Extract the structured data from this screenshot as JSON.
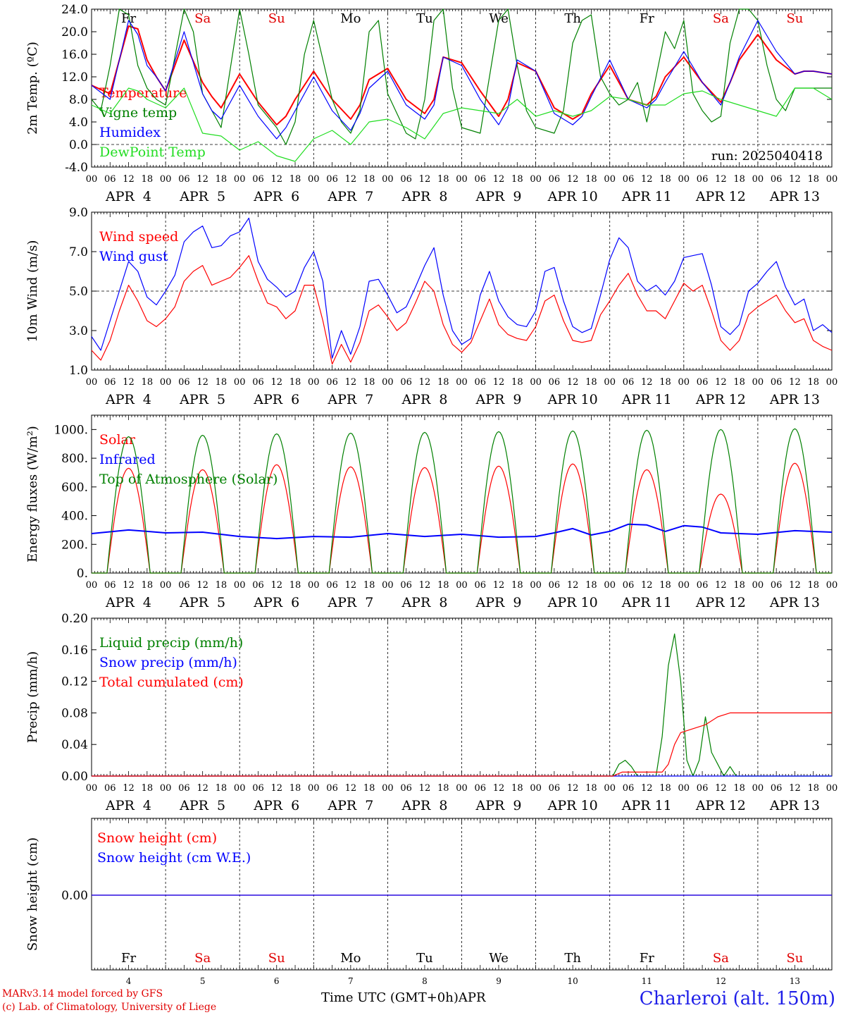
{
  "time_axis": {
    "hour_labels": [
      "00",
      "06",
      "12",
      "18"
    ],
    "date_labels": [
      "APR  4",
      "APR  5",
      "APR  6",
      "APR  7",
      "APR  8",
      "APR  9",
      "APR 10",
      "APR 11",
      "APR 12",
      "APR 13"
    ],
    "weekdays": [
      "Fr",
      "Sa",
      "Su",
      "Mo",
      "Tu",
      "We",
      "Th",
      "Fr",
      "Sa",
      "Su"
    ],
    "weekend_flags": [
      false,
      true,
      true,
      false,
      false,
      false,
      false,
      false,
      true,
      true
    ],
    "day_numbers": [
      "4",
      "5",
      "6",
      "7",
      "8",
      "9",
      "10",
      "11",
      "12",
      "13"
    ],
    "label": "Time UTC (GMT+0h)",
    "month": "APR"
  },
  "footer": {
    "credit_line1": "MARv3.14 model forced by GFS",
    "credit_line2": "(c) Lab. of Climatology, University of Liege",
    "station": "Charleroi (alt. 150m)"
  },
  "colors": {
    "red": "#ff0000",
    "blue": "#0000ff",
    "green": "#008000",
    "lightgreen": "#22dd22",
    "weekend": "#e00000",
    "station": "#1f1fe8"
  },
  "chart_data": [
    {
      "id": "temperature",
      "type": "line",
      "ylabel": "2m Temp. (ºC)",
      "ylim": [
        -4,
        24
      ],
      "yticks": [
        "-4.0",
        "0.0",
        "4.0",
        "8.0",
        "12.0",
        "16.0",
        "20.0",
        "24.0"
      ],
      "reference_line": 0,
      "annotation": "run: 2025040418",
      "x_unit": "hours since APR 4 00 UTC",
      "series": [
        {
          "name": "Temperature",
          "color": "red",
          "x": [
            0,
            6,
            12,
            15,
            18,
            21,
            24,
            30,
            36,
            39,
            42,
            48,
            54,
            60,
            63,
            66,
            72,
            78,
            84,
            87,
            90,
            96,
            102,
            108,
            111,
            114,
            120,
            126,
            132,
            135,
            138,
            144,
            150,
            156,
            159,
            162,
            168,
            174,
            180,
            183,
            186,
            192,
            198,
            204,
            207,
            210,
            216,
            222,
            228,
            231,
            234,
            240
          ],
          "y": [
            10.5,
            9,
            21,
            20.5,
            15,
            12,
            9.5,
            18.5,
            11,
            8.5,
            6.5,
            12.5,
            7.5,
            3.5,
            5,
            8,
            13,
            8,
            4.5,
            7,
            11.5,
            13.5,
            8,
            5.5,
            8,
            15.5,
            14.5,
            9.5,
            5,
            8,
            14.5,
            13,
            6.5,
            4.5,
            5.5,
            9,
            14,
            8,
            7,
            8.5,
            12,
            15.5,
            11,
            7.5,
            11,
            15,
            19.5,
            15,
            12.5,
            13,
            13,
            12.5
          ]
        },
        {
          "name": "Vigne temp",
          "color": "green",
          "x": [
            0,
            3,
            6,
            9,
            12,
            15,
            18,
            21,
            24,
            30,
            33,
            36,
            39,
            42,
            48,
            51,
            54,
            60,
            63,
            66,
            69,
            72,
            78,
            81,
            84,
            87,
            90,
            93,
            96,
            102,
            105,
            108,
            111,
            114,
            117,
            120,
            126,
            129,
            132,
            135,
            138,
            141,
            144,
            150,
            153,
            156,
            159,
            162,
            165,
            168,
            171,
            174,
            177,
            180,
            183,
            186,
            189,
            192,
            195,
            198,
            201,
            204,
            207,
            210,
            213,
            216,
            219,
            222,
            225,
            228,
            234,
            240
          ],
          "y": [
            8,
            6,
            14,
            24,
            23,
            14,
            10,
            8,
            7,
            24,
            20,
            9,
            6,
            3,
            24,
            16,
            7,
            3,
            0,
            4,
            16,
            22,
            8,
            4,
            2,
            6,
            20,
            22,
            9,
            2,
            1,
            8,
            22,
            24,
            10,
            3,
            2,
            12,
            22,
            24,
            14,
            6,
            3,
            2,
            6,
            18,
            22,
            23,
            12,
            9,
            7,
            8,
            11,
            4,
            12,
            20,
            17,
            22,
            9,
            6,
            4,
            5,
            18,
            24,
            25,
            22,
            14,
            8,
            6,
            10,
            10,
            10
          ]
        },
        {
          "name": "Humidex",
          "color": "blue",
          "x": [
            0,
            6,
            12,
            15,
            18,
            21,
            24,
            30,
            36,
            39,
            42,
            48,
            54,
            60,
            63,
            66,
            72,
            78,
            84,
            87,
            90,
            96,
            102,
            108,
            111,
            114,
            120,
            126,
            132,
            135,
            138,
            144,
            150,
            156,
            159,
            162,
            168,
            174,
            180,
            183,
            186,
            192,
            198,
            204,
            207,
            210,
            216,
            222,
            228,
            231,
            234,
            240
          ],
          "y": [
            10.5,
            8,
            22,
            19.5,
            14,
            12,
            9.5,
            20,
            9,
            6,
            4.5,
            10.5,
            5,
            1,
            3,
            6,
            12,
            6,
            2.5,
            5.5,
            10,
            13,
            7,
            4.5,
            7,
            15.5,
            14,
            8,
            3.5,
            6.5,
            15,
            13,
            5.5,
            3.5,
            5,
            8.5,
            15,
            8,
            6.5,
            8,
            11,
            16.5,
            11,
            7,
            11,
            15.5,
            22,
            16.5,
            12.5,
            13,
            13,
            12.5
          ]
        },
        {
          "name": "DewPoint Temp",
          "color": "lightgreen",
          "x": [
            0,
            6,
            12,
            15,
            18,
            24,
            30,
            36,
            42,
            48,
            54,
            60,
            66,
            72,
            78,
            84,
            90,
            96,
            102,
            108,
            114,
            120,
            126,
            132,
            138,
            144,
            150,
            156,
            162,
            168,
            174,
            180,
            186,
            192,
            198,
            204,
            210,
            216,
            222,
            228,
            234,
            240
          ],
          "y": [
            7,
            5.5,
            10,
            9.5,
            8,
            6.5,
            10,
            2,
            1.5,
            -1,
            0.5,
            -2,
            -3,
            1,
            2.5,
            0,
            4,
            4.5,
            3,
            1,
            5.5,
            6.5,
            6,
            5.5,
            8,
            5,
            6,
            5,
            6,
            8.5,
            8,
            7,
            7,
            9,
            9.5,
            8,
            7,
            6,
            5,
            10,
            10,
            8
          ]
        }
      ]
    },
    {
      "id": "wind",
      "type": "line",
      "ylabel": "10m Wind (m/s)",
      "ylim": [
        1,
        9
      ],
      "yticks": [
        "1.0",
        "3.0",
        "5.0",
        "7.0",
        "9.0"
      ],
      "reference_line": 5,
      "x_unit": "hours since APR 4 00 UTC",
      "series": [
        {
          "name": "Wind speed",
          "color": "red",
          "x": [
            0,
            3,
            6,
            9,
            12,
            15,
            18,
            21,
            24,
            27,
            30,
            33,
            36,
            39,
            42,
            45,
            48,
            51,
            54,
            57,
            60,
            63,
            66,
            69,
            72,
            75,
            78,
            81,
            84,
            87,
            90,
            93,
            96,
            99,
            102,
            105,
            108,
            111,
            114,
            117,
            120,
            123,
            126,
            129,
            132,
            135,
            138,
            141,
            144,
            147,
            150,
            153,
            156,
            159,
            162,
            165,
            168,
            171,
            174,
            177,
            180,
            183,
            186,
            189,
            192,
            195,
            198,
            201,
            204,
            207,
            210,
            213,
            216,
            219,
            222,
            225,
            228,
            231,
            234,
            237,
            240
          ],
          "y": [
            2,
            1.5,
            2.5,
            4,
            5.3,
            4.5,
            3.5,
            3.2,
            3.6,
            4.2,
            5.5,
            6,
            6.3,
            5.3,
            5.5,
            5.7,
            6.2,
            6.8,
            5.5,
            4.4,
            4.2,
            3.6,
            4,
            5.3,
            5.3,
            3.5,
            1.3,
            2.3,
            1.4,
            2.4,
            4,
            4.3,
            3.7,
            3,
            3.4,
            4.4,
            5.5,
            5,
            3.3,
            2.3,
            1.9,
            2.4,
            3.5,
            4.6,
            3.3,
            2.8,
            2.6,
            2.5,
            3.2,
            4.5,
            4.8,
            3.5,
            2.5,
            2.4,
            2.5,
            3.8,
            4.5,
            5.3,
            5.9,
            4.8,
            4,
            4,
            3.6,
            4.5,
            5.4,
            5,
            5.3,
            4,
            2.5,
            2,
            2.5,
            3.8,
            4.2,
            4.5,
            4.8,
            4,
            3.4,
            3.6,
            2.5,
            2.2,
            2
          ]
        },
        {
          "name": "Wind gust",
          "color": "blue",
          "x": [
            0,
            3,
            6,
            9,
            12,
            15,
            18,
            21,
            24,
            27,
            30,
            33,
            36,
            39,
            42,
            45,
            48,
            51,
            54,
            57,
            60,
            63,
            66,
            69,
            72,
            75,
            78,
            81,
            84,
            87,
            90,
            93,
            96,
            99,
            102,
            105,
            108,
            111,
            114,
            117,
            120,
            123,
            126,
            129,
            132,
            135,
            138,
            141,
            144,
            147,
            150,
            153,
            156,
            159,
            162,
            165,
            168,
            171,
            174,
            177,
            180,
            183,
            186,
            189,
            192,
            195,
            198,
            201,
            204,
            207,
            210,
            213,
            216,
            219,
            222,
            225,
            228,
            231,
            234,
            237,
            240
          ],
          "y": [
            2.7,
            2,
            3.5,
            5,
            6.5,
            6,
            4.7,
            4.3,
            5,
            5.8,
            7.5,
            8,
            8.3,
            7.2,
            7.3,
            7.8,
            8,
            8.7,
            6.5,
            5.6,
            5.2,
            4.7,
            5,
            6.2,
            7,
            5.5,
            1.6,
            3,
            1.8,
            3.2,
            5.5,
            5.6,
            4.8,
            3.9,
            4.2,
            5.2,
            6.3,
            7.2,
            4.8,
            3,
            2.3,
            2.6,
            4.8,
            6,
            4.5,
            3.7,
            3.3,
            3.2,
            4,
            6,
            6.2,
            4.5,
            3.2,
            2.9,
            3.1,
            4.8,
            6.6,
            7.7,
            7.2,
            5.5,
            5,
            5.3,
            4.8,
            5.5,
            6.7,
            6.8,
            6.9,
            5.3,
            3.2,
            2.8,
            3.3,
            5,
            5.4,
            6,
            6.5,
            5.2,
            4.3,
            4.6,
            3,
            3.3,
            2.9
          ]
        }
      ]
    },
    {
      "id": "energy",
      "type": "line",
      "ylabel": "Energy fluxes (W/m²)",
      "ylim": [
        0,
        1100
      ],
      "yticks": [
        "0.",
        "200.",
        "400.",
        "600.",
        "800.",
        "1000."
      ],
      "x_unit": "hours since APR 4 00 UTC",
      "diurnal": {
        "sunrise_hour": 5,
        "sunset_hour": 19
      },
      "series": [
        {
          "name": "Solar",
          "color": "red",
          "daily_peak": [
            730,
            720,
            755,
            740,
            735,
            745,
            760,
            720,
            550,
            765
          ]
        },
        {
          "name": "Infrared",
          "color": "blue",
          "x": [
            0,
            12,
            18,
            24,
            36,
            48,
            60,
            72,
            84,
            96,
            108,
            120,
            132,
            144,
            150,
            156,
            162,
            168,
            174,
            180,
            186,
            192,
            198,
            204,
            216,
            228,
            240
          ],
          "y": [
            275,
            300,
            290,
            280,
            285,
            255,
            240,
            255,
            250,
            275,
            255,
            270,
            250,
            255,
            280,
            310,
            265,
            290,
            340,
            335,
            290,
            330,
            320,
            280,
            270,
            295,
            285
          ]
        },
        {
          "name": "Top of Atmosphere (Solar)",
          "color": "green",
          "daily_peak": [
            950,
            960,
            970,
            975,
            980,
            985,
            990,
            995,
            1000,
            1005
          ]
        }
      ]
    },
    {
      "id": "precip",
      "type": "line",
      "ylabel": "Precip (mm/h)",
      "ylim": [
        0,
        0.2
      ],
      "yticks": [
        "0.00",
        "0.04",
        "0.08",
        "0.12",
        "0.16",
        "0.20"
      ],
      "x_unit": "hours since APR 4 00 UTC",
      "series": [
        {
          "name": "Liquid precip (mm/h)",
          "color": "green",
          "x": [
            0,
            169,
            171,
            173,
            175,
            177,
            183,
            185,
            187,
            189,
            191,
            193,
            195,
            197,
            199,
            201,
            203,
            205,
            207,
            209,
            240
          ],
          "y": [
            0,
            0,
            0.015,
            0.02,
            0.012,
            0,
            0,
            0.05,
            0.14,
            0.18,
            0.12,
            0.02,
            0,
            0.02,
            0.075,
            0.03,
            0.015,
            0,
            0.012,
            0,
            0
          ]
        },
        {
          "name": "Snow precip (mm/h)",
          "color": "blue",
          "x": [
            0,
            240
          ],
          "y": [
            0,
            0
          ]
        },
        {
          "name": "Total cumulated (cm)",
          "color": "red",
          "x": [
            0,
            169,
            172,
            175,
            185,
            187,
            189,
            191,
            195,
            199,
            203,
            207,
            240
          ],
          "y": [
            0,
            0,
            0.005,
            0.005,
            0.005,
            0.015,
            0.04,
            0.055,
            0.06,
            0.065,
            0.075,
            0.08,
            0.08
          ]
        }
      ]
    },
    {
      "id": "snow",
      "type": "line",
      "ylabel": "Snow height (cm)",
      "yticks": [
        "0.00"
      ],
      "x_unit": "hours since APR 4 00 UTC",
      "series": [
        {
          "name": "Snow height (cm)",
          "color": "red",
          "x": [
            0,
            240
          ],
          "y": [
            0,
            0
          ]
        },
        {
          "name": "Snow height (cm W.E.)",
          "color": "blue",
          "x": [
            0,
            240
          ],
          "y": [
            0,
            0
          ]
        }
      ]
    }
  ]
}
